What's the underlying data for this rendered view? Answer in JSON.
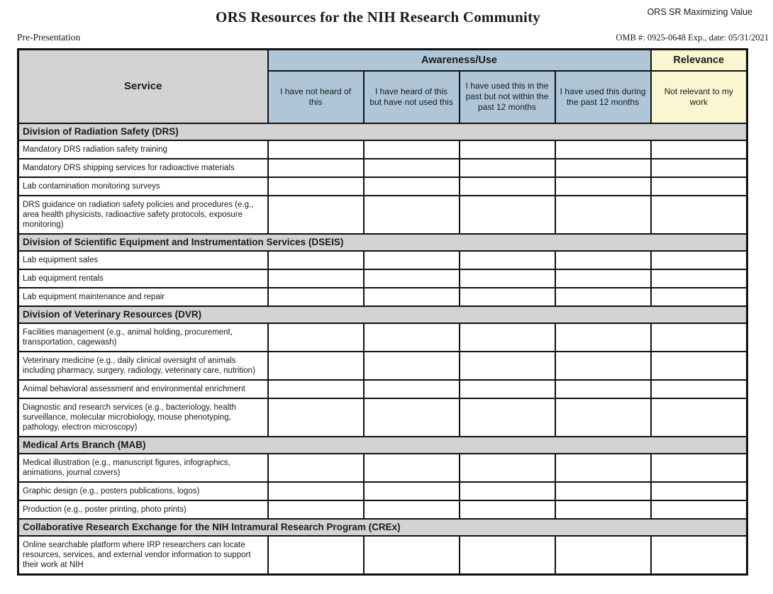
{
  "page": {
    "corner_note": "ORS SR Maximizing Value",
    "title": "ORS Resources for the NIH Research Community",
    "stage_label": "Pre-Presentation",
    "omb_note": "OMB #: 0925-0648 Exp., date: 05/31/2021"
  },
  "colors": {
    "header_blue": "#aec6d8",
    "header_yellow": "#faf6d2",
    "section_gray": "#d3d3d3",
    "border_black": "#111111"
  },
  "table": {
    "service_header": "Service",
    "group_headers": [
      {
        "label": "Awareness/Use",
        "span": 4,
        "tone": "blue"
      },
      {
        "label": "Relevance",
        "span": 1,
        "tone": "yellow"
      }
    ],
    "column_headers": [
      {
        "label": "I have not heard of this",
        "tone": "blue"
      },
      {
        "label": "I have heard of this but have not used this",
        "tone": "blue"
      },
      {
        "label": "I have used this in the past but not within the past 12 months",
        "tone": "blue"
      },
      {
        "label": "I have used this during the past 12 months",
        "tone": "blue"
      },
      {
        "label": "Not relevant to my work",
        "tone": "yellow"
      }
    ],
    "sections": [
      {
        "title": "Division of Radiation Safety (DRS)",
        "rows": [
          "Mandatory DRS radiation safety training",
          "Mandatory DRS shipping services for radioactive materials",
          "Lab contamination monitoring surveys",
          "DRS guidance on radiation safety policies and procedures (e.g., area health physicists, radioactive safety protocols, exposure monitoring)"
        ]
      },
      {
        "title": "Division of Scientific Equipment and Instrumentation Services (DSEIS)",
        "rows": [
          "Lab equipment sales",
          "Lab equipment rentals",
          "Lab equipment maintenance and repair"
        ]
      },
      {
        "title": "Division of Veterinary Resources (DVR)",
        "rows": [
          "Facilities management (e.g., animal holding, procurement, transportation, cagewash)",
          "Veterinary medicine (e.g., daily clinical oversight of animals including pharmacy, surgery, radiology, veterinary care, nutrition)",
          "Animal behavioral assessment and environmental enrichment",
          "Diagnostic and research services (e.g., bacteriology, health surveillance, molecular microbiology, mouse phenotyping, pathology, electron microscopy)"
        ]
      },
      {
        "title": "Medical Arts Branch (MAB)",
        "rows": [
          "Medical illustration (e.g., manuscript figures, infographics, animations, journal covers)",
          "Graphic design (e.g., posters publications, logos)",
          "Production (e.g., poster printing, photo prints)"
        ]
      },
      {
        "title": "Collaborative Research Exchange for the NIH Intramural Research Program (CREx)",
        "rows": [
          "Online searchable platform where IRP researchers can locate resources, services, and external vendor information to support their work at NIH"
        ]
      }
    ]
  }
}
